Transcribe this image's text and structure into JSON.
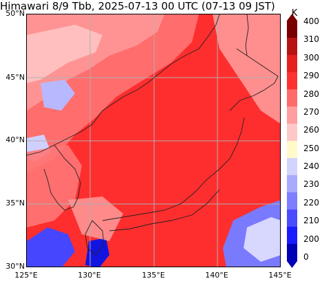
{
  "title": "Himawari 8/9 Tbb, 2025-07-13 00 UTC (07-13 09 JST)",
  "map": {
    "lat_labels": [
      "50°N",
      "45°N",
      "40°N",
      "35°N",
      "30°N"
    ],
    "lon_labels": [
      "125°E",
      "130°E",
      "135°E",
      "140°E",
      "145°E"
    ],
    "extent": {
      "lon_min": 125,
      "lon_max": 145,
      "lat_min": 30,
      "lat_max": 50
    },
    "gridlines": true
  },
  "colorbar": {
    "unit": "K",
    "ticks": [
      "400",
      "310",
      "300",
      "290",
      "280",
      "270",
      "260",
      "250",
      "240",
      "230",
      "220",
      "210",
      "200",
      "0"
    ],
    "colors": [
      "#7a0000",
      "#b71313",
      "#e61f1f",
      "#ff3030",
      "#ff6a6a",
      "#ff9e9e",
      "#ffc8c8",
      "#fffac8",
      "#d3d3ff",
      "#a9a9ff",
      "#7d7dff",
      "#4b4bff",
      "#1b1bff",
      "#0000b4"
    ]
  }
}
